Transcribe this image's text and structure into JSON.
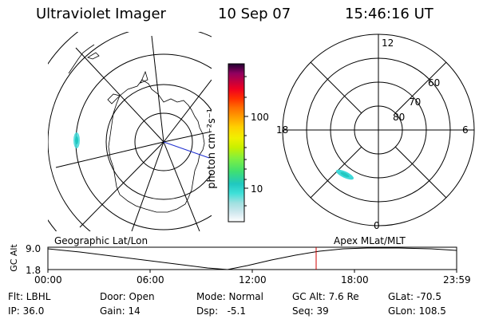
{
  "header": {
    "title": "Ultraviolet Imager",
    "date": "10 Sep 07",
    "time": "15:46:16 UT"
  },
  "colorbar": {
    "label": "photon cm⁻²s⁻¹",
    "ticks": [
      "100",
      "10"
    ],
    "scale": "log",
    "colors": [
      "#ffffff",
      "#cfe8ee",
      "#9fe0e0",
      "#3fe0d8",
      "#20c8c0",
      "#40e070",
      "#80f040",
      "#c8f000",
      "#f0f000",
      "#ffd000",
      "#ffa000",
      "#ff7000",
      "#ff3000",
      "#f00020",
      "#c00040",
      "#900060",
      "#500060",
      "#200030"
    ]
  },
  "geo_panel": {
    "map": "South polar geographic projection (Antarctica)",
    "patch_color": "#3fd8d8"
  },
  "mag_panel": {
    "labels": {
      "mlt_12": "12",
      "mlt_18": "18",
      "mlt_6": "6",
      "mlt_0": "0",
      "lat_60": "60",
      "lat_70": "70",
      "lat_80": "80"
    },
    "patch_color": "#3fd8d8"
  },
  "orbit": {
    "left_label": "Geographic Lat/Lon",
    "right_label": "Apex MLat/MLT",
    "yaxis_title": "GC Alt",
    "ytick_top": "9.0",
    "ytick_bottom": "1.8",
    "xticks": [
      "00:00",
      "06:00",
      "12:00",
      "18:00",
      "23:59"
    ],
    "marker_color": "#d00000"
  },
  "status": {
    "flt": "Flt: LBHL",
    "ip": "IP: 36.0",
    "door": "Door: Open",
    "gain": "Gain: 14",
    "mode": "Mode: Normal",
    "dsp": "Dsp:   -5.1",
    "gcalt": "GC Alt: 7.6 Re",
    "seq": "Seq: 39",
    "glat": "GLat: -70.5",
    "glon": "GLon: 108.5"
  }
}
